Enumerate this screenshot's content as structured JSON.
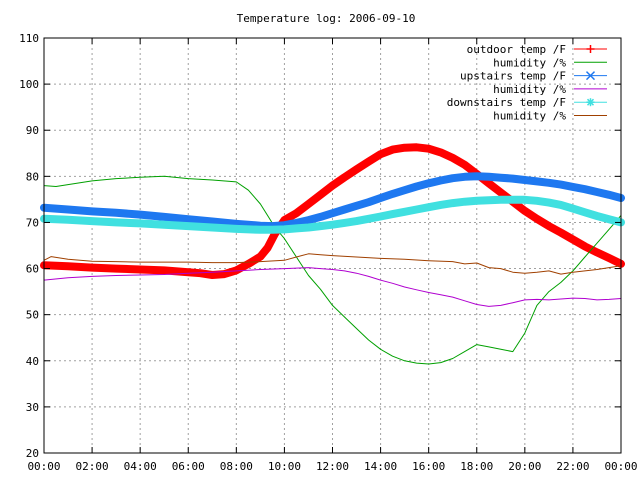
{
  "chart_data": {
    "type": "line",
    "title": "Temperature log: 2006-09-10",
    "xlabel": "",
    "ylabel": "",
    "xlim": [
      0,
      24
    ],
    "ylim": [
      20,
      110
    ],
    "x_tick_values": [
      0,
      2,
      4,
      6,
      8,
      10,
      12,
      14,
      16,
      18,
      20,
      22,
      24
    ],
    "x_tick_labels": [
      "00:00",
      "02:00",
      "04:00",
      "06:00",
      "08:00",
      "10:00",
      "12:00",
      "14:00",
      "16:00",
      "18:00",
      "20:00",
      "22:00",
      "00:00"
    ],
    "y_tick_values": [
      20,
      30,
      40,
      50,
      60,
      70,
      80,
      90,
      100,
      110
    ],
    "y_tick_labels": [
      "20",
      "30",
      "40",
      "50",
      "60",
      "70",
      "80",
      "90",
      "100",
      "110"
    ],
    "grid": true,
    "legend_position": "top-right",
    "series": [
      {
        "name": "outdoor temp /F",
        "color": "#ff0000",
        "marker": "plus",
        "style": "thick",
        "x": [
          0,
          1,
          2,
          3,
          4,
          5,
          6,
          6.5,
          7,
          7.5,
          8,
          8.5,
          9,
          9.3,
          9.6,
          10,
          10.5,
          11,
          11.5,
          12,
          12.5,
          13,
          13.5,
          14,
          14.5,
          15,
          15.5,
          16,
          16.5,
          17,
          17.5,
          18,
          18.5,
          19,
          19.5,
          20,
          20.5,
          21,
          21.5,
          22,
          22.5,
          23,
          23.5,
          24
        ],
        "y": [
          60.7,
          60.5,
          60.2,
          60.0,
          59.8,
          59.6,
          59.2,
          59.0,
          58.6,
          58.8,
          59.6,
          61.0,
          62.6,
          64.5,
          67.5,
          70.5,
          72.0,
          74.0,
          76.0,
          78.0,
          79.8,
          81.5,
          83.2,
          84.8,
          85.8,
          86.2,
          86.3,
          86.0,
          85.2,
          84.0,
          82.5,
          80.5,
          78.5,
          76.5,
          74.5,
          72.5,
          70.8,
          69.2,
          67.8,
          66.3,
          64.8,
          63.5,
          62.3,
          61.0
        ]
      },
      {
        "name": "humidity /%",
        "color": "#00a000",
        "style": "thin",
        "x": [
          0,
          0.5,
          1,
          2,
          3,
          4,
          5,
          6,
          7,
          8,
          8.5,
          9,
          9.3,
          9.6,
          10,
          10.5,
          11,
          11.5,
          12,
          12.5,
          13,
          13.5,
          14,
          14.5,
          15,
          15.5,
          16,
          16.5,
          17,
          17.5,
          18,
          18.5,
          19,
          19.5,
          20,
          20.5,
          21,
          21.5,
          22,
          22.5,
          23,
          23.5,
          24
        ],
        "y": [
          78.0,
          77.8,
          78.2,
          79.0,
          79.5,
          79.8,
          80.0,
          79.5,
          79.2,
          78.8,
          77.0,
          74.0,
          71.5,
          69.0,
          66.5,
          62.5,
          58.5,
          55.5,
          52.0,
          49.5,
          47.0,
          44.5,
          42.5,
          41.0,
          40.0,
          39.5,
          39.3,
          39.6,
          40.5,
          42.0,
          43.5,
          43.0,
          42.5,
          42.0,
          46.0,
          52.0,
          55.0,
          57.0,
          59.5,
          62.5,
          65.5,
          68.5,
          71.5
        ]
      },
      {
        "name": "upstairs temp /F",
        "color": "#1e78f0",
        "marker": "cross",
        "style": "thick",
        "x": [
          0,
          1,
          2,
          3,
          4,
          5,
          6,
          7,
          8,
          9,
          9.5,
          10,
          10.5,
          11,
          11.5,
          12,
          12.5,
          13,
          13.5,
          14,
          14.5,
          15,
          15.5,
          16,
          16.5,
          17,
          17.5,
          18,
          18.5,
          19,
          19.5,
          20,
          20.5,
          21,
          21.5,
          22,
          22.5,
          23,
          23.5,
          24
        ],
        "y": [
          73.2,
          72.8,
          72.4,
          72.1,
          71.7,
          71.2,
          70.7,
          70.2,
          69.7,
          69.3,
          69.2,
          69.4,
          69.9,
          70.5,
          71.2,
          72.0,
          72.8,
          73.6,
          74.4,
          75.3,
          76.2,
          77.0,
          77.8,
          78.5,
          79.1,
          79.6,
          79.9,
          80.0,
          79.9,
          79.7,
          79.5,
          79.2,
          78.9,
          78.6,
          78.2,
          77.7,
          77.2,
          76.6,
          76.0,
          75.3
        ]
      },
      {
        "name": "humidity /%",
        "color": "#b000d0",
        "style": "thin",
        "x": [
          0,
          1,
          2,
          3,
          4,
          5,
          6,
          7,
          8,
          9,
          10,
          10.5,
          11,
          11.5,
          12,
          12.5,
          13,
          13.5,
          14,
          14.5,
          15,
          15.5,
          16,
          16.5,
          17,
          17.5,
          18,
          18.5,
          19,
          19.5,
          20,
          20.5,
          21,
          21.5,
          22,
          22.5,
          23,
          23.5,
          24
        ],
        "y": [
          57.5,
          58.0,
          58.3,
          58.5,
          58.6,
          58.7,
          59.0,
          59.2,
          59.5,
          59.8,
          60.0,
          60.1,
          60.2,
          60.0,
          59.8,
          59.5,
          59.0,
          58.3,
          57.5,
          56.8,
          56.0,
          55.4,
          54.8,
          54.3,
          53.8,
          53.0,
          52.2,
          51.8,
          52.0,
          52.6,
          53.2,
          53.3,
          53.2,
          53.4,
          53.6,
          53.5,
          53.2,
          53.3,
          53.5
        ]
      },
      {
        "name": "downstairs temp /F",
        "color": "#40e0e0",
        "marker": "star",
        "style": "thick",
        "x": [
          0,
          1,
          2,
          3,
          4,
          5,
          6,
          7,
          8,
          9,
          9.5,
          10,
          10.5,
          11,
          11.5,
          12,
          12.5,
          13,
          13.5,
          14,
          14.5,
          15,
          15.5,
          16,
          16.5,
          17,
          17.5,
          18,
          18.5,
          19,
          19.5,
          20,
          20.5,
          21,
          21.5,
          22,
          22.5,
          23,
          23.5,
          24
        ],
        "y": [
          70.8,
          70.6,
          70.3,
          70.0,
          69.8,
          69.5,
          69.2,
          68.9,
          68.6,
          68.4,
          68.4,
          68.5,
          68.7,
          68.9,
          69.2,
          69.5,
          69.9,
          70.3,
          70.8,
          71.3,
          71.8,
          72.3,
          72.8,
          73.3,
          73.8,
          74.2,
          74.5,
          74.7,
          74.8,
          74.9,
          74.9,
          74.9,
          74.7,
          74.3,
          73.8,
          73.0,
          72.2,
          71.4,
          70.7,
          70.0
        ]
      },
      {
        "name": "humidity /%",
        "color": "#a04000",
        "style": "thin",
        "x": [
          0,
          0.3,
          1,
          2,
          3,
          4,
          5,
          6,
          7,
          8,
          9,
          10,
          10.5,
          11,
          11.5,
          12,
          13,
          14,
          15,
          16,
          17,
          17.5,
          18,
          18.5,
          19,
          19.5,
          20,
          20.5,
          21,
          21.5,
          22,
          22.5,
          23,
          23.5,
          24
        ],
        "y": [
          61.8,
          62.6,
          62.0,
          61.6,
          61.5,
          61.4,
          61.4,
          61.4,
          61.3,
          61.3,
          61.5,
          61.8,
          62.5,
          63.2,
          63.0,
          62.8,
          62.5,
          62.2,
          62.0,
          61.7,
          61.5,
          61.0,
          61.2,
          60.2,
          60.0,
          59.2,
          59.0,
          59.2,
          59.5,
          58.8,
          59.2,
          59.5,
          59.8,
          60.2,
          60.6
        ]
      }
    ]
  }
}
